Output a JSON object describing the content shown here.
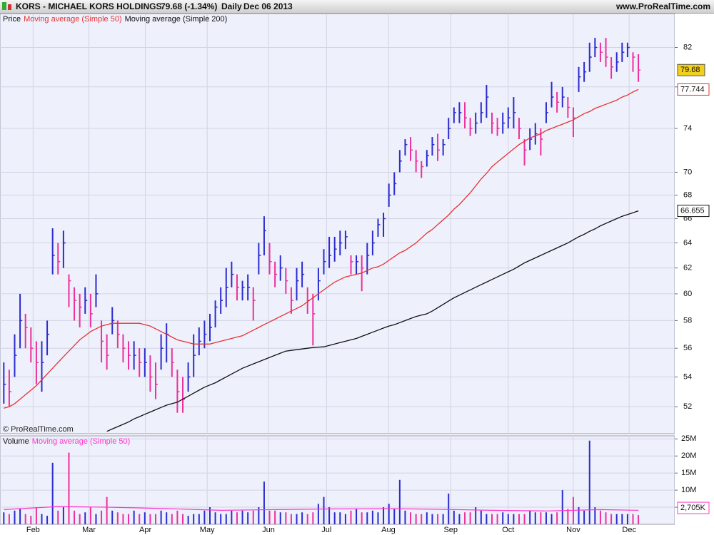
{
  "header": {
    "symbol": "KORS - MICHAEL KORS HOLDINGS",
    "quote": "79.68 (-1.34%)",
    "period": "Daily",
    "date": "Dec 06 2013",
    "site": "www.ProRealTime.com"
  },
  "copyright": "© ProRealTime.com",
  "chart_data": [
    {
      "type": "ohlc",
      "log_scale": true,
      "grid": true,
      "xlim": [
        -0.7,
        123.7
      ],
      "xticks": [
        {
          "value": 5.4,
          "label": "Feb"
        },
        {
          "value": 15.7,
          "label": "Mar"
        },
        {
          "value": 26.1,
          "label": "Apr"
        },
        {
          "value": 37.5,
          "label": "May"
        },
        {
          "value": 48.8,
          "label": "Jun"
        },
        {
          "value": 59.5,
          "label": "Jul"
        },
        {
          "value": 70.9,
          "label": "Aug"
        },
        {
          "value": 82.4,
          "label": "Sep"
        },
        {
          "value": 93.0,
          "label": "Oct"
        },
        {
          "value": 105.0,
          "label": "Nov"
        },
        {
          "value": 115.3,
          "label": "Dec"
        }
      ],
      "ylim": [
        50.25,
        85.6
      ],
      "yticks": [
        52,
        54,
        56,
        58,
        60,
        62,
        64,
        66,
        68,
        70,
        74,
        78,
        82
      ],
      "series": [
        {
          "name": "Price",
          "color": "#111111",
          "up_color": "#2b2bcf",
          "down_color": "#ee2f9c",
          "high": [
            55,
            54.5,
            57,
            60,
            58.5,
            57.5,
            56.5,
            56.5,
            58,
            65.2,
            64,
            65,
            61.5,
            60.5,
            60,
            60.5,
            60,
            61.5,
            58,
            57,
            59,
            58,
            57,
            56.5,
            56.5,
            56,
            56,
            55.5,
            55,
            57,
            57.8,
            56,
            54.5,
            54,
            55,
            57,
            57.5,
            58,
            58.5,
            59.5,
            60.5,
            62,
            62.5,
            61.5,
            61,
            61.5,
            60.5,
            64,
            66.2,
            64,
            62.5,
            63,
            62,
            60.5,
            62,
            62.5,
            60.5,
            60,
            62,
            63.5,
            64.5,
            64.5,
            65,
            65,
            63,
            63,
            63,
            64,
            65,
            66,
            66.5,
            69,
            70,
            72,
            73,
            73.2,
            72,
            71,
            72,
            73.2,
            73.5,
            73,
            75,
            76,
            76.5,
            76.5,
            75,
            75.5,
            76.5,
            78.2,
            75.5,
            75,
            75.5,
            76,
            77,
            75,
            73,
            74,
            74.5,
            74,
            76.5,
            78.5,
            77.5,
            78,
            77,
            76,
            80,
            80.5,
            82.5,
            83,
            82.5,
            83,
            81,
            81.5,
            82.5,
            82.5,
            81.5,
            81.3
          ],
          "low": [
            52.2,
            52,
            54,
            56,
            56,
            55,
            53.5,
            53,
            55.5,
            61.5,
            61.5,
            62,
            59,
            58,
            57.5,
            58.5,
            57.5,
            59,
            55,
            54.5,
            57,
            56,
            55,
            54.5,
            54.5,
            54,
            54,
            53,
            52.5,
            54.5,
            55,
            54,
            51.6,
            51.6,
            53,
            54,
            55.5,
            56,
            56.5,
            57.5,
            58.5,
            59,
            60.5,
            59.5,
            59.5,
            59.5,
            58,
            61.5,
            63,
            61.5,
            60.5,
            61,
            60,
            58.5,
            59.5,
            60.5,
            58.5,
            56.2,
            59.5,
            61.5,
            62,
            62.5,
            63,
            63.5,
            61.5,
            61.5,
            60.2,
            61.5,
            63,
            64.5,
            64.5,
            67,
            68,
            70,
            71.5,
            71,
            70,
            69.5,
            70.5,
            71.5,
            71,
            71.5,
            73,
            74.5,
            74.5,
            74,
            73.3,
            73.5,
            74.5,
            75,
            73.5,
            73.3,
            73.5,
            74,
            74,
            73,
            70.6,
            72,
            72.5,
            71.5,
            74.5,
            76,
            75.5,
            76,
            75,
            73.2,
            77.5,
            78.5,
            79.5,
            81,
            80.5,
            80,
            78.8,
            79.5,
            80.5,
            81,
            79.5,
            78.5
          ],
          "close": [
            53.5,
            53,
            55.5,
            58,
            57.5,
            56,
            55,
            55,
            57,
            63,
            62.5,
            64,
            61,
            59.5,
            59,
            59.5,
            58.5,
            60,
            56.5,
            55.5,
            58,
            57,
            56,
            55.5,
            55.5,
            55,
            55,
            54,
            53.5,
            56,
            57,
            55,
            53,
            52.5,
            54,
            55.5,
            56.5,
            57,
            57.5,
            59,
            59.5,
            60.5,
            61.5,
            60.5,
            60.5,
            60.5,
            59.5,
            63,
            65,
            62.5,
            61.5,
            62,
            61,
            59.5,
            61,
            61.5,
            59.5,
            58.5,
            61,
            62.5,
            63,
            63.5,
            64,
            64.5,
            62.5,
            62.5,
            62,
            63,
            64,
            65.5,
            66,
            68,
            69,
            71,
            72.5,
            72,
            71,
            70.5,
            71.5,
            72.5,
            72,
            72.5,
            74,
            75.5,
            75.5,
            75,
            74,
            74.5,
            75.5,
            77,
            74.5,
            74,
            74.5,
            75,
            75.5,
            74,
            72,
            73,
            73.5,
            73,
            75.5,
            77,
            76.5,
            77,
            76,
            75,
            79,
            79.5,
            81,
            82,
            81.5,
            81,
            80,
            80.5,
            81.5,
            82,
            81,
            79.68
          ]
        },
        {
          "name": "Moving average (Simple 50)",
          "color": "#e63333",
          "values": [
            51.9,
            52.0,
            52.2,
            52.5,
            52.8,
            53.1,
            53.4,
            53.8,
            54.2,
            54.6,
            55.0,
            55.4,
            55.8,
            56.2,
            56.6,
            56.9,
            57.2,
            57.4,
            57.6,
            57.7,
            57.8,
            57.8,
            57.8,
            57.8,
            57.8,
            57.8,
            57.7,
            57.6,
            57.4,
            57.2,
            57.0,
            56.8,
            56.6,
            56.5,
            56.4,
            56.3,
            56.3,
            56.3,
            56.3,
            56.4,
            56.5,
            56.6,
            56.7,
            56.8,
            56.9,
            57.1,
            57.3,
            57.5,
            57.7,
            57.9,
            58.1,
            58.3,
            58.5,
            58.7,
            58.9,
            59.1,
            59.4,
            59.7,
            60.0,
            60.3,
            60.6,
            60.9,
            61.1,
            61.3,
            61.4,
            61.5,
            61.6,
            61.8,
            62.0,
            62.1,
            62.3,
            62.6,
            62.9,
            63.2,
            63.4,
            63.7,
            64.0,
            64.4,
            64.8,
            65.1,
            65.5,
            65.9,
            66.3,
            66.8,
            67.2,
            67.7,
            68.2,
            68.8,
            69.4,
            69.9,
            70.5,
            70.9,
            71.3,
            71.7,
            72.1,
            72.5,
            72.8,
            73.1,
            73.3,
            73.5,
            73.8,
            74.0,
            74.2,
            74.4,
            74.6,
            74.8,
            75.1,
            75.4,
            75.6,
            75.9,
            76.1,
            76.3,
            76.5,
            76.7,
            77.0,
            77.2,
            77.5,
            77.744
          ]
        },
        {
          "name": "Moving average (Simple 200)",
          "color": "#111111",
          "values": [
            null,
            null,
            null,
            null,
            null,
            null,
            null,
            null,
            null,
            null,
            null,
            null,
            null,
            null,
            null,
            null,
            null,
            null,
            null,
            50.4,
            50.55,
            50.7,
            50.85,
            51.0,
            51.2,
            51.35,
            51.5,
            51.65,
            51.8,
            51.95,
            52.1,
            52.2,
            52.3,
            52.5,
            52.7,
            52.9,
            53.1,
            53.3,
            53.45,
            53.6,
            53.8,
            54.0,
            54.2,
            54.4,
            54.6,
            54.75,
            54.9,
            55.05,
            55.2,
            55.35,
            55.5,
            55.65,
            55.8,
            55.85,
            55.9,
            55.95,
            56.0,
            56.05,
            56.08,
            56.1,
            56.2,
            56.3,
            56.4,
            56.5,
            56.6,
            56.7,
            56.85,
            57.0,
            57.15,
            57.3,
            57.45,
            57.6,
            57.7,
            57.85,
            58.0,
            58.15,
            58.3,
            58.4,
            58.5,
            58.7,
            58.95,
            59.2,
            59.45,
            59.7,
            59.9,
            60.1,
            60.3,
            60.5,
            60.7,
            60.9,
            61.1,
            61.3,
            61.5,
            61.7,
            61.9,
            62.15,
            62.4,
            62.6,
            62.8,
            63.0,
            63.2,
            63.4,
            63.6,
            63.8,
            64.0,
            64.25,
            64.5,
            64.7,
            64.95,
            65.15,
            65.4,
            65.6,
            65.8,
            66.0,
            66.2,
            66.35,
            66.5,
            66.655
          ]
        }
      ]
    },
    {
      "type": "bar",
      "grid": true,
      "ylim": [
        0,
        25.9
      ],
      "yticks": [
        {
          "value": 5,
          "label": "5M"
        },
        {
          "value": 10,
          "label": "10M"
        },
        {
          "value": 15,
          "label": "15M"
        },
        {
          "value": 20,
          "label": "20M"
        },
        {
          "value": 25,
          "label": "25M"
        }
      ],
      "series": [
        {
          "name": "Volume",
          "color": "#111111",
          "last_label": "2,705K",
          "values": [
            3.5,
            3,
            4,
            4.5,
            3,
            2.5,
            5,
            3,
            2.5,
            18,
            4,
            5,
            21,
            4,
            3,
            3.5,
            5,
            3,
            4,
            8,
            4,
            3.5,
            3,
            3,
            4,
            3,
            3.5,
            3,
            3,
            4,
            3.5,
            3,
            4,
            3,
            2.5,
            3,
            3,
            4,
            5,
            3.5,
            3,
            3,
            4,
            3.5,
            4,
            3.5,
            4,
            5,
            12.5,
            4,
            4,
            3.5,
            3.5,
            3,
            3,
            3.5,
            3,
            3.5,
            6,
            8,
            5,
            3.5,
            3.5,
            3,
            4,
            4.5,
            3.5,
            3.5,
            4,
            3.5,
            5,
            6,
            4.5,
            13,
            4,
            3.5,
            3,
            3,
            3.5,
            3,
            3,
            3,
            9,
            4,
            3,
            3.5,
            3.5,
            5,
            4,
            3,
            3,
            3,
            3.5,
            3,
            3,
            3,
            3,
            4,
            3.5,
            3.5,
            3.5,
            3,
            3.5,
            10,
            4.5,
            8,
            5,
            4,
            24.5,
            5,
            4,
            3.5,
            3,
            3,
            3,
            3,
            3,
            2.705
          ]
        },
        {
          "name": "Moving average (Simple 50)",
          "color": "#ff33cc",
          "x": [
            0,
            10,
            20,
            30,
            40,
            50,
            60,
            70,
            80,
            90,
            100,
            110,
            117
          ],
          "values": [
            4.3,
            5.2,
            5.0,
            4.6,
            4.1,
            4.3,
            4.5,
            4.6,
            4.4,
            4.1,
            3.9,
            4.3,
            4.1
          ]
        }
      ]
    }
  ]
}
